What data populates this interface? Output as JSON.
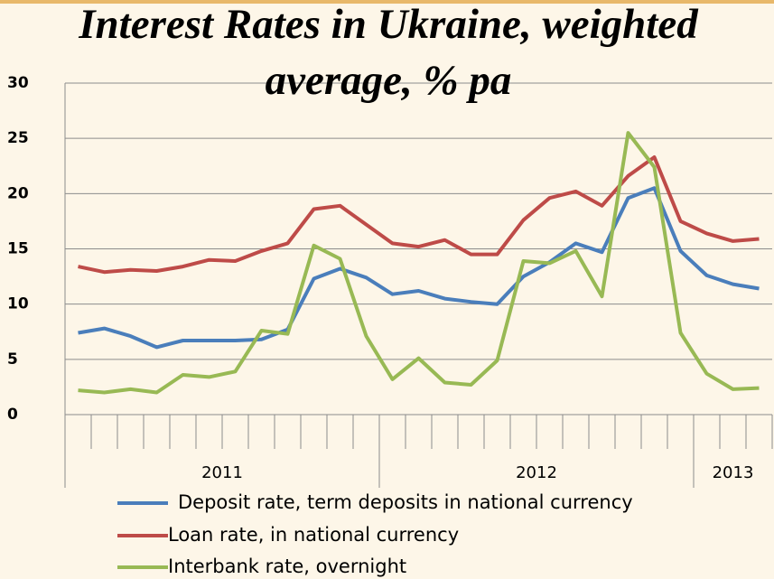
{
  "chart_data": {
    "type": "line",
    "title": "Interest Rates in Ukraine, weighted average, % pa",
    "categories": [
      null,
      null,
      null,
      null,
      null,
      null,
      null,
      null,
      null,
      null,
      null,
      null,
      null,
      null,
      null,
      null,
      null,
      null,
      null,
      null,
      null,
      null,
      null,
      null,
      null,
      null,
      null
    ],
    "year_groups": [
      {
        "label": "2011",
        "count": 12
      },
      {
        "label": "2012",
        "count": 12
      },
      {
        "label": "2013",
        "count": 3
      }
    ],
    "series": [
      {
        "name": "Deposit rate, term deposits in national currency",
        "color": "#4a7ebb",
        "values": [
          7.4,
          7.8,
          7.1,
          6.1,
          6.7,
          6.7,
          6.7,
          6.8,
          7.7,
          12.3,
          13.2,
          12.4,
          10.9,
          11.2,
          10.5,
          10.2,
          10.0,
          12.5,
          13.8,
          15.5,
          14.7,
          19.6,
          20.5,
          14.8,
          12.6,
          11.8,
          11.4
        ]
      },
      {
        "name": "Loan rate, in national currency",
        "color": "#be4b48",
        "values": [
          13.4,
          12.9,
          13.1,
          13.0,
          13.4,
          14.0,
          13.9,
          14.8,
          15.5,
          18.6,
          18.9,
          17.2,
          15.5,
          15.2,
          15.8,
          14.5,
          14.5,
          17.6,
          19.6,
          20.2,
          18.9,
          21.6,
          23.3,
          17.5,
          16.4,
          15.7,
          15.9
        ]
      },
      {
        "name": "Interbank rate, overnight",
        "color": "#98b954",
        "values": [
          2.2,
          2.0,
          2.3,
          2.0,
          3.6,
          3.4,
          3.9,
          7.6,
          7.3,
          15.3,
          14.1,
          7.1,
          3.2,
          5.1,
          2.9,
          2.7,
          4.9,
          13.9,
          13.7,
          14.8,
          10.7,
          25.5,
          22.4,
          7.4,
          3.7,
          2.3,
          2.4
        ]
      }
    ],
    "ylim": [
      0,
      30
    ],
    "yticks": [
      0,
      5,
      10,
      15,
      20,
      25,
      30
    ],
    "grid": true
  }
}
